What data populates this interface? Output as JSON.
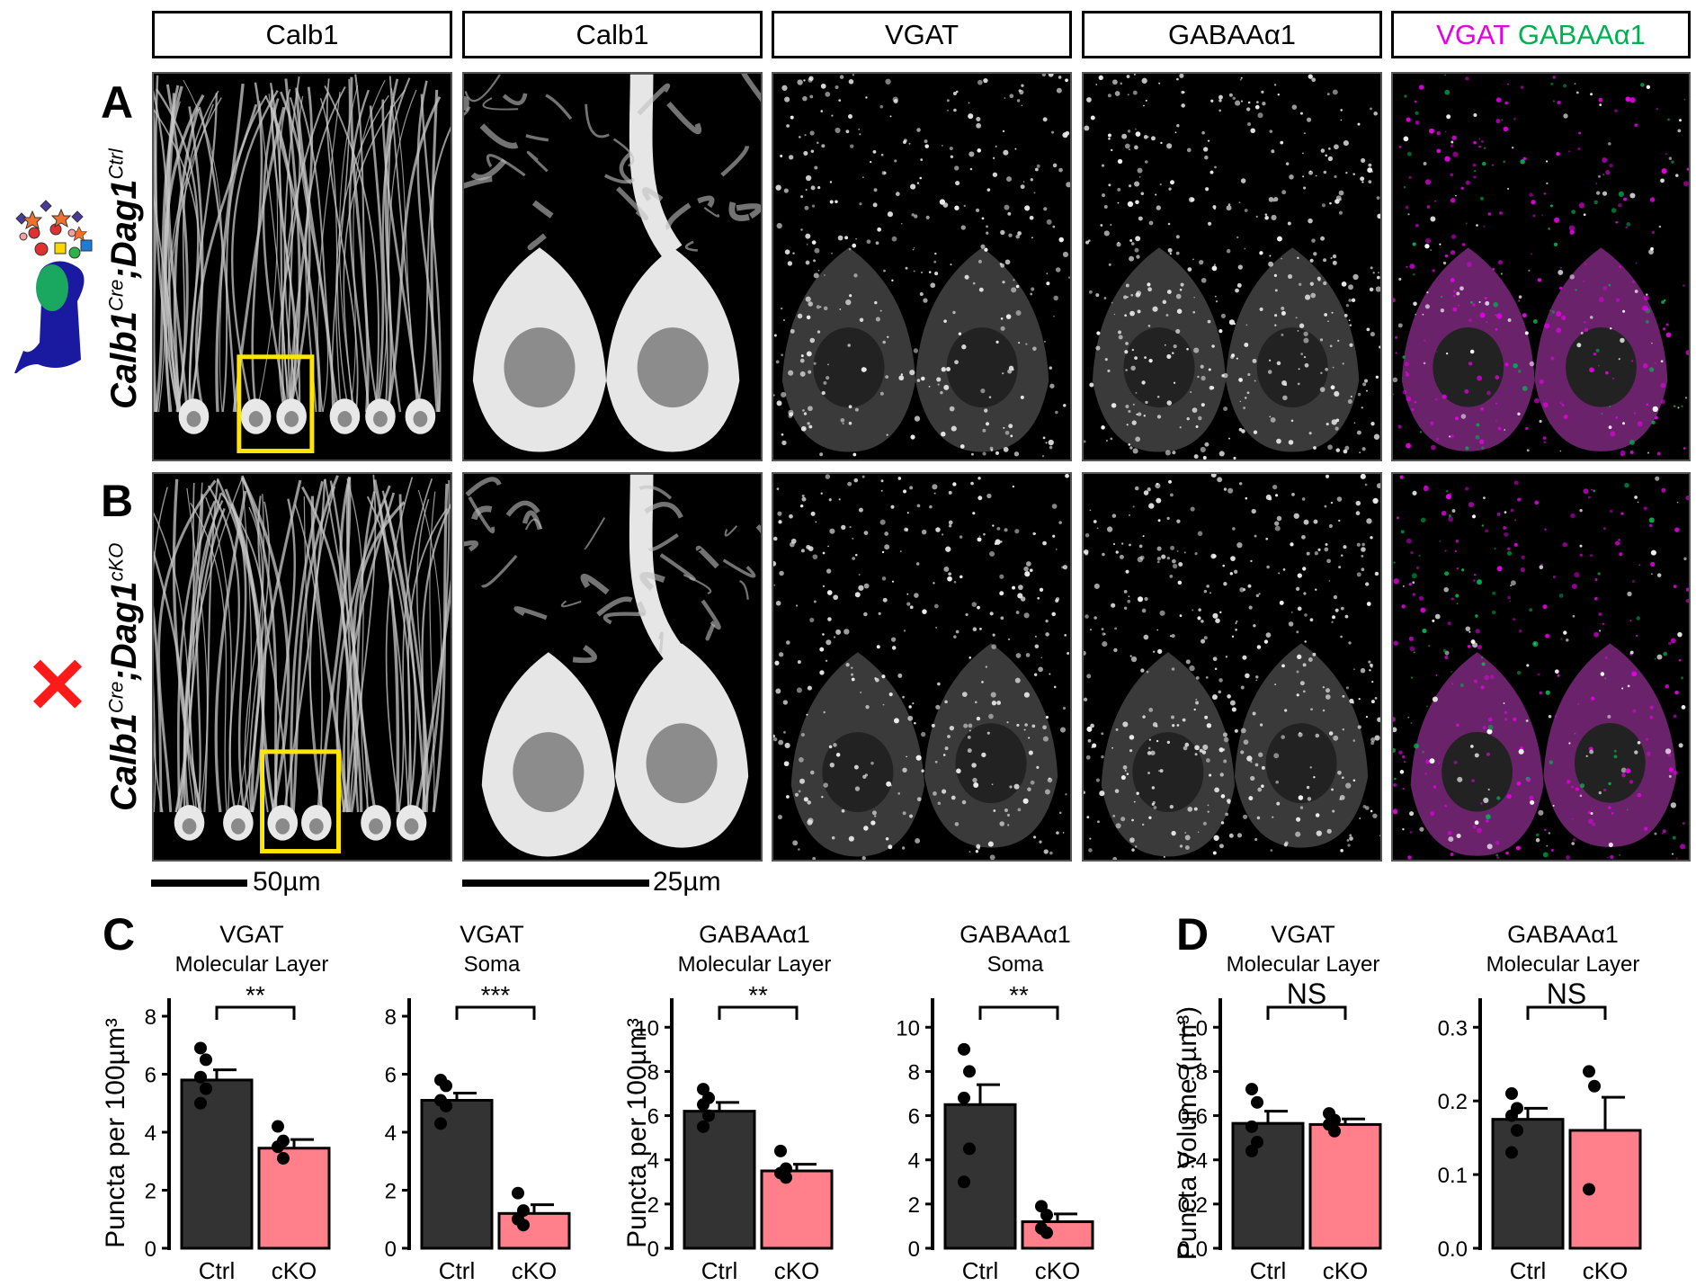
{
  "headers": [
    {
      "text": "Calb1"
    },
    {
      "text": "Calb1"
    },
    {
      "text": "VGAT"
    },
    {
      "text": "GABAAα1"
    }
  ],
  "merge_header": {
    "vgat": "VGAT",
    "gaba": "GABAAα1"
  },
  "panels": {
    "A": "A",
    "B": "B",
    "C": "C",
    "D": "D"
  },
  "row_labels": {
    "ctrl": {
      "gene1": "Calb1",
      "sup1": "Cre",
      "sep": ";",
      "gene2": "Dag1",
      "sup2": "Ctrl"
    },
    "cko": {
      "gene1": "Calb1",
      "sup1": "Cre",
      "sep": ";",
      "gene2": "Dag1",
      "sup2": "cKO"
    }
  },
  "scale_bars": {
    "left": "50µm",
    "right": "25µm"
  },
  "colors": {
    "ctrl": "#333333",
    "cko": "#ff7f8a",
    "magenta": "#e400e4",
    "green": "#00b050",
    "box": "#ffe600",
    "x_mark": "#ff1a1a"
  },
  "icons": {
    "knockout": "red-x-icon",
    "cell": "purkinje-cell-glycan-icon"
  },
  "chart_data": [
    {
      "type": "bar",
      "title": "VGAT",
      "subtitle": "Molecular Layer",
      "ylabel": "Puncta per 100µm³",
      "categories": [
        "Ctrl",
        "cKO"
      ],
      "values": [
        5.8,
        3.45
      ],
      "errors": [
        0.35,
        0.3
      ],
      "ylim": [
        0,
        8
      ],
      "yticks": [
        0,
        2,
        4,
        6,
        8
      ],
      "significance": "**",
      "points": [
        [
          6.9,
          6.5,
          5.9,
          5.5,
          5.0
        ],
        [
          4.2,
          3.7,
          3.5,
          3.1
        ]
      ]
    },
    {
      "type": "bar",
      "title": "VGAT",
      "subtitle": "Soma",
      "ylabel": "",
      "categories": [
        "Ctrl",
        "cKO"
      ],
      "values": [
        5.1,
        1.2
      ],
      "errors": [
        0.25,
        0.3
      ],
      "ylim": [
        0,
        8
      ],
      "yticks": [
        0,
        2,
        4,
        6,
        8
      ],
      "significance": "***",
      "points": [
        [
          5.8,
          5.6,
          5.1,
          4.9,
          4.3
        ],
        [
          1.9,
          1.3,
          1.0,
          0.8
        ]
      ]
    },
    {
      "type": "bar",
      "title": "GABAAα1",
      "subtitle": "Molecular Layer",
      "ylabel": "Puncta per 100µm³",
      "categories": [
        "Ctrl",
        "cKO"
      ],
      "values": [
        6.2,
        3.5
      ],
      "errors": [
        0.4,
        0.3
      ],
      "ylim": [
        0,
        10.5
      ],
      "yticks": [
        0,
        2,
        4,
        6,
        8,
        10
      ],
      "significance": "**",
      "points": [
        [
          7.2,
          6.8,
          6.5,
          6.0,
          5.5
        ],
        [
          4.4,
          3.6,
          3.4,
          3.2
        ]
      ]
    },
    {
      "type": "bar",
      "title": "GABAAα1",
      "subtitle": "Soma",
      "ylabel": "",
      "categories": [
        "Ctrl",
        "cKO"
      ],
      "values": [
        6.5,
        1.2
      ],
      "errors": [
        0.9,
        0.35
      ],
      "ylim": [
        0,
        10.5
      ],
      "yticks": [
        0,
        2,
        4,
        6,
        8,
        10
      ],
      "significance": "**",
      "points": [
        [
          9.0,
          8.0,
          6.8,
          4.5,
          3.0
        ],
        [
          1.9,
          1.5,
          0.9,
          0.7
        ]
      ]
    },
    {
      "type": "bar",
      "title": "VGAT",
      "subtitle": "Molecular Layer",
      "ylabel": "Puncta Volume (µm³)",
      "categories": [
        "Ctrl",
        "cKO"
      ],
      "values": [
        0.565,
        0.56
      ],
      "errors": [
        0.055,
        0.025
      ],
      "ylim": [
        0,
        1.05
      ],
      "yticks": [
        "0.0",
        "0.2",
        "0.4",
        "0.6",
        "0.8",
        "1.0"
      ],
      "significance": "NS",
      "points": [
        [
          0.72,
          0.66,
          0.55,
          0.48,
          0.44
        ],
        [
          0.61,
          0.58,
          0.56,
          0.53
        ]
      ]
    },
    {
      "type": "bar",
      "title": "GABAAα1",
      "subtitle": "Molecular Layer",
      "ylabel": "",
      "categories": [
        "Ctrl",
        "cKO"
      ],
      "values": [
        0.175,
        0.16
      ],
      "errors": [
        0.015,
        0.045
      ],
      "ylim": [
        0,
        0.315
      ],
      "yticks": [
        "0.0",
        "0.1",
        "0.2",
        "0.3"
      ],
      "significance": "NS",
      "points": [
        [
          0.21,
          0.19,
          0.18,
          0.16,
          0.13
        ],
        [
          0.24,
          0.22,
          0.08
        ]
      ]
    }
  ]
}
